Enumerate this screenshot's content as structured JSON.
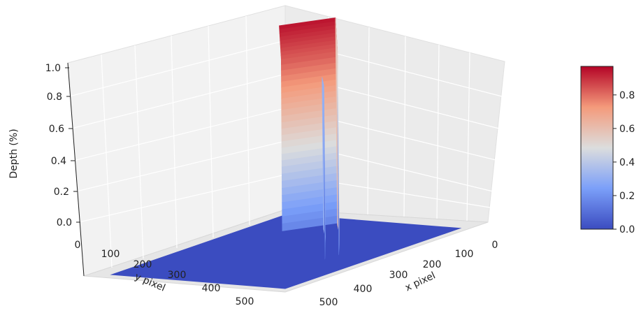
{
  "chart_data": {
    "type": "surface3d",
    "zlabel": "Depth (%)",
    "xlabel": "x pixel",
    "ylabel": "y pixel",
    "x_ticks": [
      0,
      100,
      200,
      300,
      400,
      500
    ],
    "y_ticks": [
      0,
      100,
      200,
      300,
      400,
      500
    ],
    "z_ticks": [
      "0.0",
      "0.2",
      "0.4",
      "0.6",
      "0.8",
      "1.0"
    ],
    "xlim": [
      0,
      540
    ],
    "ylim": [
      0,
      540
    ],
    "zlim": [
      0,
      1.0
    ],
    "colormap": "coolwarm",
    "colorbar_ticks": [
      "0.0",
      "0.2",
      "0.4",
      "0.6",
      "0.8"
    ],
    "colorbar_range": [
      0,
      0.97
    ],
    "grid": true,
    "surface_profile": {
      "description_points": [
        {
          "x": 150,
          "y": 215,
          "depth": 0.97
        },
        {
          "x": 200,
          "y": 270,
          "depth": 0.85
        },
        {
          "x": 250,
          "y": 320,
          "depth": 0.65
        },
        {
          "x": 300,
          "y": 370,
          "depth": 0.42
        },
        {
          "x": 340,
          "y": 410,
          "depth": 0.15
        }
      ],
      "inner_depth_max": 0.75,
      "background_depth": 0.0
    }
  }
}
